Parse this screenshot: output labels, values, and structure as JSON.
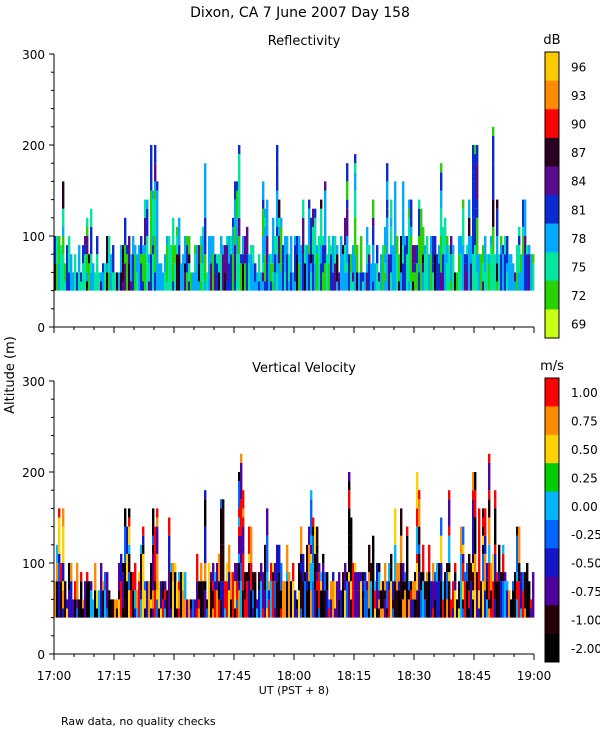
{
  "figure": {
    "title": "Dixon, CA  7 June 2007  Day 158",
    "ylabel": "Altitude (m)",
    "xlabel": "UT  (PST + 8)",
    "note": "Raw data, no quality checks"
  },
  "chart_data": [
    {
      "type": "heatmap",
      "title": "Reflectivity",
      "ylabel": "Altitude (m)",
      "xlabel": "UT  (PST + 8)",
      "x_ticks": [
        "17:00",
        "17:15",
        "17:30",
        "17:45",
        "18:00",
        "18:15",
        "18:30",
        "18:45",
        "19:00"
      ],
      "x_range_minutes_after_1700": [
        0,
        120
      ],
      "y_ticks": [
        0,
        100,
        200,
        300
      ],
      "ylim": [
        0,
        300
      ],
      "data_floor_m": 40,
      "colorbar": {
        "unit": "dB",
        "labels": [
          "96",
          "93",
          "90",
          "87",
          "84",
          "81",
          "78",
          "75",
          "72",
          "69"
        ],
        "colors": [
          "#ffc800",
          "#ff8c00",
          "#ff0000",
          "#2a0020",
          "#5a0a8c",
          "#0a2ad2",
          "#00aaff",
          "#00e6a0",
          "#28d200",
          "#c8ff14"
        ]
      },
      "profile_tops_m": [
        160,
        80,
        60,
        140,
        70,
        100,
        60,
        160,
        90,
        140,
        200,
        80,
        160,
        120,
        60,
        180,
        100,
        170,
        120,
        220,
        140,
        90,
        160,
        200,
        120,
        100,
        140,
        180,
        160,
        80,
        120,
        200,
        90,
        140,
        80,
        180,
        160,
        140,
        200,
        120,
        100,
        180,
        60,
        140,
        200,
        160,
        220,
        120,
        80,
        140,
        100
      ]
    },
    {
      "type": "heatmap",
      "title": "Vertical Velocity",
      "ylabel": "Altitude (m)",
      "xlabel": "UT  (PST + 8)",
      "x_ticks": [
        "17:00",
        "17:15",
        "17:30",
        "17:45",
        "18:00",
        "18:15",
        "18:30",
        "18:45",
        "19:00"
      ],
      "x_range_minutes_after_1700": [
        0,
        120
      ],
      "y_ticks": [
        0,
        100,
        200,
        300
      ],
      "ylim": [
        0,
        300
      ],
      "data_floor_m": 40,
      "colorbar": {
        "unit": "m/s",
        "labels": [
          "1.00",
          "0.75",
          "0.50",
          "0.25",
          "0.00",
          "-0.25",
          "-0.50",
          "-0.75",
          "-1.00",
          "-2.00"
        ],
        "colors": [
          "#ff0000",
          "#ff8c00",
          "#ffd200",
          "#00cc00",
          "#00b4ff",
          "#0064ff",
          "#1414c8",
          "#5000a0",
          "#28000a",
          "#000000"
        ]
      },
      "profile_tops_m": [
        160,
        80,
        60,
        140,
        70,
        100,
        60,
        160,
        90,
        140,
        200,
        80,
        160,
        120,
        60,
        180,
        100,
        170,
        120,
        220,
        140,
        90,
        160,
        200,
        120,
        100,
        140,
        180,
        160,
        80,
        120,
        200,
        90,
        140,
        80,
        180,
        160,
        140,
        200,
        120,
        100,
        180,
        60,
        140,
        200,
        160,
        220,
        120,
        80,
        140,
        100
      ]
    }
  ]
}
